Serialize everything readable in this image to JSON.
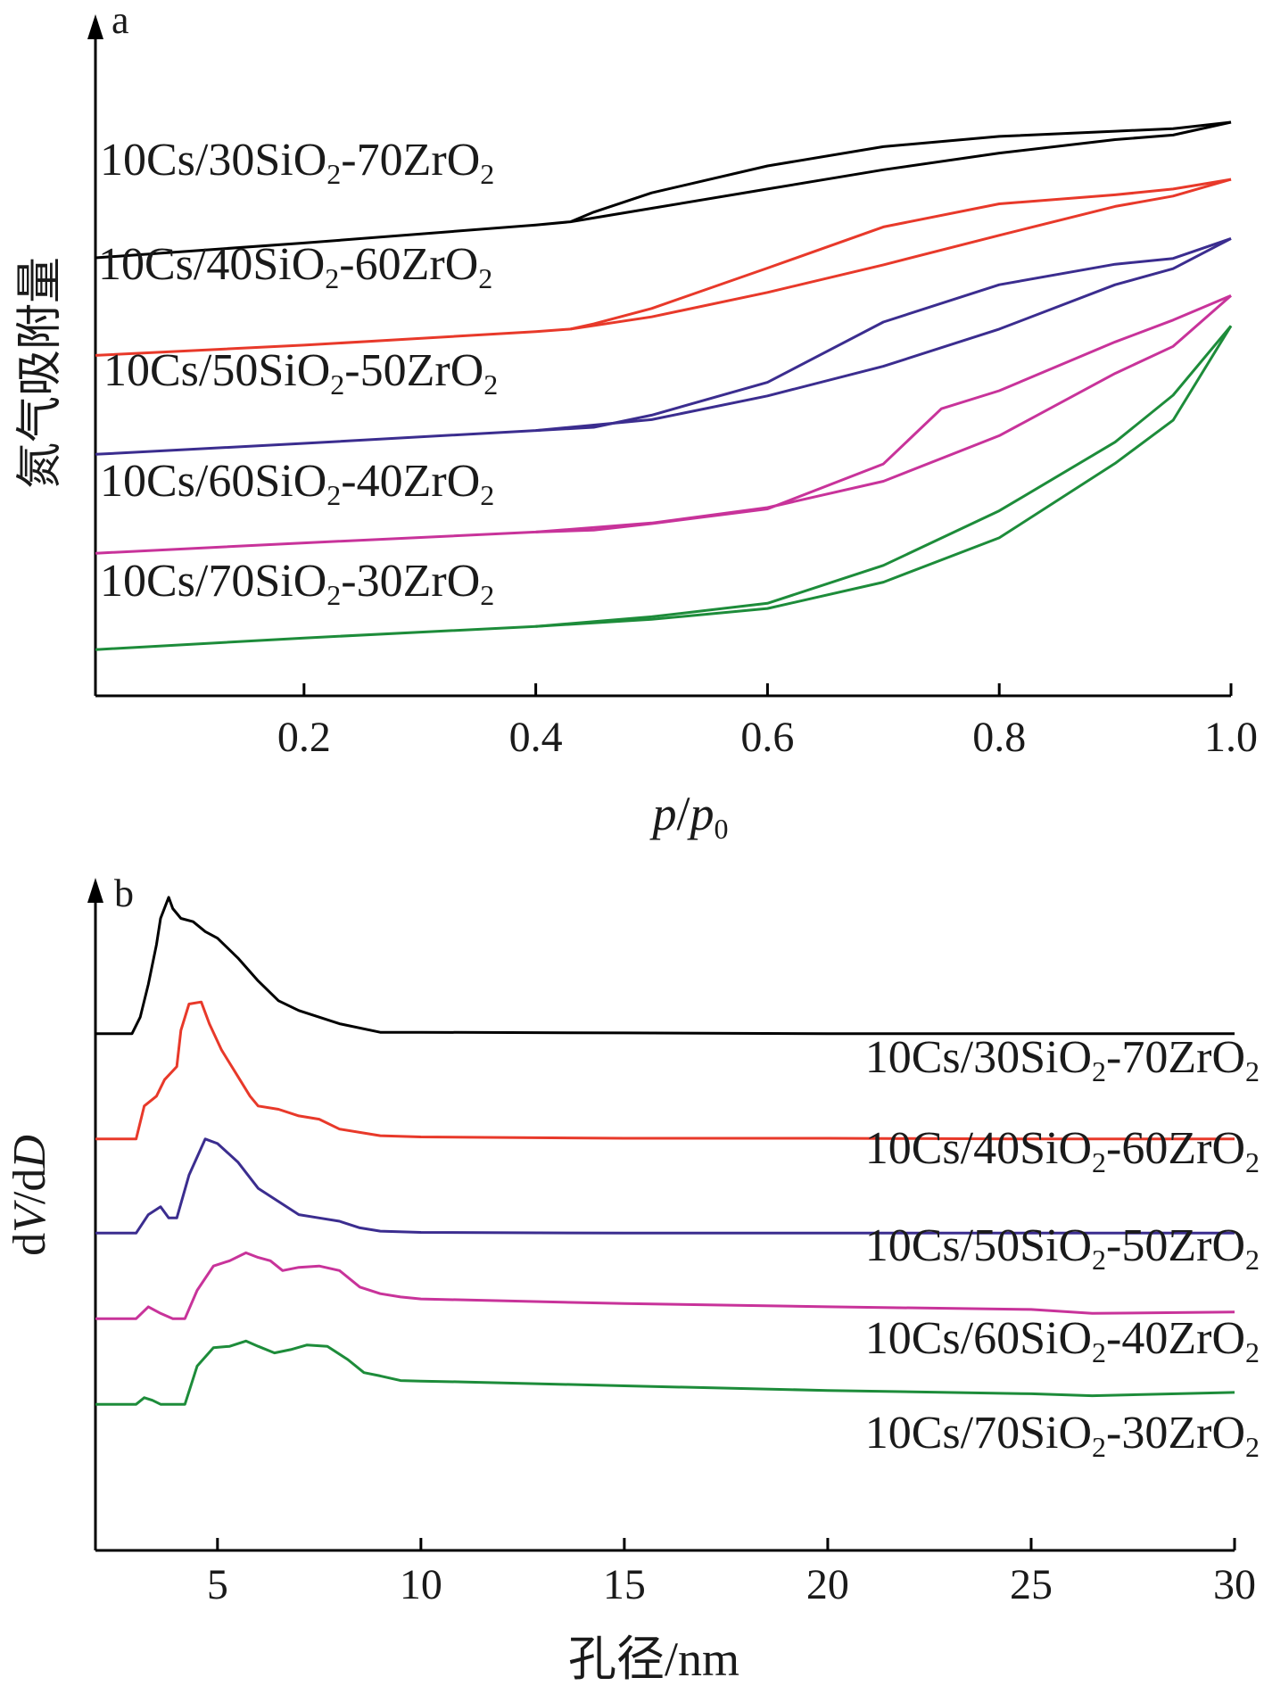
{
  "chart_data": [
    {
      "panel": "a",
      "type": "line",
      "xlabel_italic_p": "p",
      "xlabel_slash": "/",
      "xlabel_p0": "p",
      "xlabel_sub": "0",
      "ylabel": "氮气吸附量",
      "xlim": [
        0.02,
        1.0
      ],
      "ylim": [
        0,
        1
      ],
      "x_ticks": [
        "0.2",
        "0.4",
        "0.6",
        "0.8",
        "1.0"
      ],
      "x_tick_values": [
        0.2,
        0.4,
        0.6,
        0.8,
        1.0
      ],
      "y_axis_numeric": false,
      "series": [
        {
          "name": "10Cs/30SiO2-70ZrO2",
          "label_parts": [
            "10Cs/30SiO",
            "2",
            "-70ZrO",
            "2"
          ],
          "color": "#000000",
          "adsorption": [
            [
              0.02,
              0.682
            ],
            [
              0.2,
              0.705
            ],
            [
              0.4,
              0.733
            ],
            [
              0.43,
              0.738
            ],
            [
              0.5,
              0.759
            ],
            [
              0.6,
              0.789
            ],
            [
              0.7,
              0.819
            ],
            [
              0.8,
              0.845
            ],
            [
              0.9,
              0.866
            ],
            [
              0.95,
              0.873
            ],
            [
              1.0,
              0.893
            ]
          ],
          "desorption": [
            [
              1.0,
              0.893
            ],
            [
              0.95,
              0.883
            ],
            [
              0.9,
              0.879
            ],
            [
              0.8,
              0.871
            ],
            [
              0.7,
              0.855
            ],
            [
              0.6,
              0.825
            ],
            [
              0.5,
              0.783
            ],
            [
              0.45,
              0.753
            ],
            [
              0.43,
              0.738
            ]
          ]
        },
        {
          "name": "10Cs/40SiO2-60ZrO2",
          "label_parts": [
            "10Cs/40SiO",
            "2",
            "-60ZrO",
            "2"
          ],
          "color": "#e8392a",
          "adsorption": [
            [
              0.02,
              0.53
            ],
            [
              0.2,
              0.546
            ],
            [
              0.4,
              0.567
            ],
            [
              0.43,
              0.571
            ],
            [
              0.5,
              0.59
            ],
            [
              0.6,
              0.628
            ],
            [
              0.7,
              0.671
            ],
            [
              0.8,
              0.717
            ],
            [
              0.9,
              0.762
            ],
            [
              0.95,
              0.778
            ],
            [
              1.0,
              0.804
            ]
          ],
          "desorption": [
            [
              1.0,
              0.804
            ],
            [
              0.95,
              0.789
            ],
            [
              0.9,
              0.78
            ],
            [
              0.8,
              0.766
            ],
            [
              0.7,
              0.73
            ],
            [
              0.6,
              0.666
            ],
            [
              0.5,
              0.603
            ],
            [
              0.45,
              0.579
            ],
            [
              0.43,
              0.571
            ]
          ]
        },
        {
          "name": "10Cs/50SiO2-50ZrO2",
          "label_parts": [
            "10Cs/50SiO",
            "2",
            "-50ZrO",
            "2"
          ],
          "color": "#3b2d8f",
          "adsorption": [
            [
              0.02,
              0.376
            ],
            [
              0.2,
              0.393
            ],
            [
              0.4,
              0.413
            ],
            [
              0.5,
              0.43
            ],
            [
              0.6,
              0.467
            ],
            [
              0.7,
              0.513
            ],
            [
              0.8,
              0.571
            ],
            [
              0.9,
              0.64
            ],
            [
              0.95,
              0.665
            ],
            [
              1.0,
              0.712
            ]
          ],
          "desorption": [
            [
              1.0,
              0.712
            ],
            [
              0.95,
              0.681
            ],
            [
              0.9,
              0.672
            ],
            [
              0.8,
              0.64
            ],
            [
              0.7,
              0.582
            ],
            [
              0.6,
              0.488
            ],
            [
              0.5,
              0.437
            ],
            [
              0.45,
              0.418
            ],
            [
              0.4,
              0.413
            ]
          ]
        },
        {
          "name": "10Cs/60SiO2-40ZrO2",
          "label_parts": [
            "10Cs/60SiO",
            "2",
            "-40ZrO",
            "2"
          ],
          "color": "#c8339a",
          "adsorption": [
            [
              0.02,
              0.222
            ],
            [
              0.2,
              0.238
            ],
            [
              0.4,
              0.255
            ],
            [
              0.5,
              0.269
            ],
            [
              0.6,
              0.293
            ],
            [
              0.7,
              0.334
            ],
            [
              0.8,
              0.405
            ],
            [
              0.9,
              0.502
            ],
            [
              0.95,
              0.544
            ],
            [
              1.0,
              0.623
            ]
          ],
          "desorption": [
            [
              1.0,
              0.623
            ],
            [
              0.95,
              0.585
            ],
            [
              0.9,
              0.551
            ],
            [
              0.8,
              0.475
            ],
            [
              0.75,
              0.447
            ],
            [
              0.7,
              0.361
            ],
            [
              0.6,
              0.291
            ],
            [
              0.5,
              0.268
            ],
            [
              0.45,
              0.258
            ],
            [
              0.4,
              0.255
            ]
          ]
        },
        {
          "name": "10Cs/70SiO2-30ZrO2",
          "label_parts": [
            "10Cs/70SiO",
            "2",
            "-30ZrO",
            "2"
          ],
          "color": "#1d8c3a",
          "adsorption": [
            [
              0.02,
              0.072
            ],
            [
              0.2,
              0.09
            ],
            [
              0.4,
              0.108
            ],
            [
              0.5,
              0.119
            ],
            [
              0.6,
              0.136
            ],
            [
              0.7,
              0.177
            ],
            [
              0.8,
              0.246
            ],
            [
              0.9,
              0.362
            ],
            [
              0.95,
              0.429
            ],
            [
              1.0,
              0.576
            ]
          ],
          "desorption": [
            [
              1.0,
              0.576
            ],
            [
              0.95,
              0.468
            ],
            [
              0.9,
              0.395
            ],
            [
              0.8,
              0.288
            ],
            [
              0.7,
              0.203
            ],
            [
              0.6,
              0.144
            ],
            [
              0.5,
              0.123
            ],
            [
              0.4,
              0.108
            ]
          ]
        }
      ]
    },
    {
      "panel": "b",
      "type": "line",
      "xlabel": "孔径/nm",
      "ylabel_d1": "d",
      "ylabel_V": "V",
      "ylabel_slash": "/d",
      "ylabel_D": "D",
      "xlim": [
        2.0,
        30.0
      ],
      "ylim": [
        0,
        1
      ],
      "x_ticks": [
        "5",
        "10",
        "15",
        "20",
        "25",
        "30"
      ],
      "x_tick_values": [
        5,
        10,
        15,
        20,
        25,
        30
      ],
      "y_axis_numeric": false,
      "series": [
        {
          "name": "10Cs/30SiO2-70ZrO2",
          "label_parts": [
            "10Cs/30SiO",
            "2",
            "-70ZrO",
            "2"
          ],
          "color": "#000000",
          "points": [
            [
              2.0,
              0.785
            ],
            [
              2.9,
              0.785
            ],
            [
              3.1,
              0.81
            ],
            [
              3.3,
              0.86
            ],
            [
              3.5,
              0.92
            ],
            [
              3.6,
              0.96
            ],
            [
              3.8,
              0.992
            ],
            [
              3.9,
              0.975
            ],
            [
              4.1,
              0.96
            ],
            [
              4.4,
              0.955
            ],
            [
              4.7,
              0.94
            ],
            [
              5.0,
              0.93
            ],
            [
              5.5,
              0.9
            ],
            [
              6.0,
              0.865
            ],
            [
              6.5,
              0.835
            ],
            [
              7.0,
              0.82
            ],
            [
              7.5,
              0.81
            ],
            [
              8.0,
              0.8
            ],
            [
              9.0,
              0.787
            ],
            [
              10.0,
              0.787
            ],
            [
              15.0,
              0.786
            ],
            [
              20.0,
              0.785
            ],
            [
              25.0,
              0.785
            ],
            [
              30.0,
              0.785
            ]
          ]
        },
        {
          "name": "10Cs/40SiO2-60ZrO2",
          "label_parts": [
            "10Cs/40SiO",
            "2",
            "-60ZrO",
            "2"
          ],
          "color": "#e8392a",
          "points": [
            [
              2.0,
              0.625
            ],
            [
              3.0,
              0.625
            ],
            [
              3.2,
              0.675
            ],
            [
              3.5,
              0.69
            ],
            [
              3.7,
              0.715
            ],
            [
              4.0,
              0.735
            ],
            [
              4.1,
              0.79
            ],
            [
              4.3,
              0.83
            ],
            [
              4.6,
              0.833
            ],
            [
              4.8,
              0.8
            ],
            [
              5.1,
              0.76
            ],
            [
              5.5,
              0.72
            ],
            [
              5.8,
              0.69
            ],
            [
              6.0,
              0.675
            ],
            [
              6.5,
              0.67
            ],
            [
              7.0,
              0.66
            ],
            [
              7.5,
              0.655
            ],
            [
              8.0,
              0.64
            ],
            [
              9.0,
              0.63
            ],
            [
              10.0,
              0.628
            ],
            [
              15.0,
              0.626
            ],
            [
              20.0,
              0.626
            ],
            [
              25.0,
              0.625
            ],
            [
              30.0,
              0.625
            ]
          ]
        },
        {
          "name": "10Cs/50SiO2-50ZrO2",
          "label_parts": [
            "10Cs/50SiO",
            "2",
            "-50ZrO",
            "2"
          ],
          "color": "#3b2d8f",
          "points": [
            [
              2.0,
              0.482
            ],
            [
              3.0,
              0.482
            ],
            [
              3.3,
              0.51
            ],
            [
              3.6,
              0.522
            ],
            [
              3.8,
              0.505
            ],
            [
              4.0,
              0.505
            ],
            [
              4.3,
              0.57
            ],
            [
              4.7,
              0.625
            ],
            [
              5.0,
              0.618
            ],
            [
              5.5,
              0.59
            ],
            [
              6.0,
              0.55
            ],
            [
              6.5,
              0.53
            ],
            [
              7.0,
              0.51
            ],
            [
              7.5,
              0.505
            ],
            [
              8.0,
              0.5
            ],
            [
              8.5,
              0.49
            ],
            [
              9.0,
              0.485
            ],
            [
              10.0,
              0.483
            ],
            [
              15.0,
              0.482
            ],
            [
              20.0,
              0.482
            ],
            [
              25.0,
              0.482
            ],
            [
              30.0,
              0.482
            ]
          ]
        },
        {
          "name": "10Cs/60SiO2-40ZrO2",
          "label_parts": [
            "10Cs/60SiO",
            "2",
            "-40ZrO",
            "2"
          ],
          "color": "#c8339a",
          "points": [
            [
              2.0,
              0.352
            ],
            [
              3.0,
              0.352
            ],
            [
              3.3,
              0.37
            ],
            [
              3.6,
              0.36
            ],
            [
              3.9,
              0.352
            ],
            [
              4.2,
              0.352
            ],
            [
              4.5,
              0.395
            ],
            [
              4.9,
              0.432
            ],
            [
              5.3,
              0.44
            ],
            [
              5.7,
              0.452
            ],
            [
              6.0,
              0.445
            ],
            [
              6.3,
              0.44
            ],
            [
              6.6,
              0.425
            ],
            [
              7.0,
              0.43
            ],
            [
              7.5,
              0.432
            ],
            [
              8.0,
              0.425
            ],
            [
              8.5,
              0.4
            ],
            [
              9.0,
              0.39
            ],
            [
              9.5,
              0.385
            ],
            [
              10.0,
              0.382
            ],
            [
              15.0,
              0.375
            ],
            [
              20.0,
              0.37
            ],
            [
              25.0,
              0.366
            ],
            [
              26.5,
              0.36
            ],
            [
              30.0,
              0.362
            ]
          ]
        },
        {
          "name": "10Cs/70SiO2-30ZrO2",
          "label_parts": [
            "10Cs/70SiO",
            "2",
            "-30ZrO",
            "2"
          ],
          "color": "#1d8c3a",
          "points": [
            [
              2.0,
              0.222
            ],
            [
              3.0,
              0.222
            ],
            [
              3.2,
              0.232
            ],
            [
              3.4,
              0.228
            ],
            [
              3.6,
              0.222
            ],
            [
              4.2,
              0.222
            ],
            [
              4.5,
              0.28
            ],
            [
              4.9,
              0.308
            ],
            [
              5.3,
              0.31
            ],
            [
              5.7,
              0.318
            ],
            [
              6.0,
              0.31
            ],
            [
              6.4,
              0.3
            ],
            [
              6.8,
              0.305
            ],
            [
              7.2,
              0.312
            ],
            [
              7.7,
              0.31
            ],
            [
              8.2,
              0.29
            ],
            [
              8.6,
              0.27
            ],
            [
              9.0,
              0.265
            ],
            [
              9.5,
              0.258
            ],
            [
              10.0,
              0.257
            ],
            [
              11.0,
              0.256
            ],
            [
              15.0,
              0.25
            ],
            [
              20.0,
              0.243
            ],
            [
              25.0,
              0.238
            ],
            [
              26.5,
              0.235
            ],
            [
              30.0,
              0.24
            ]
          ]
        }
      ]
    }
  ]
}
